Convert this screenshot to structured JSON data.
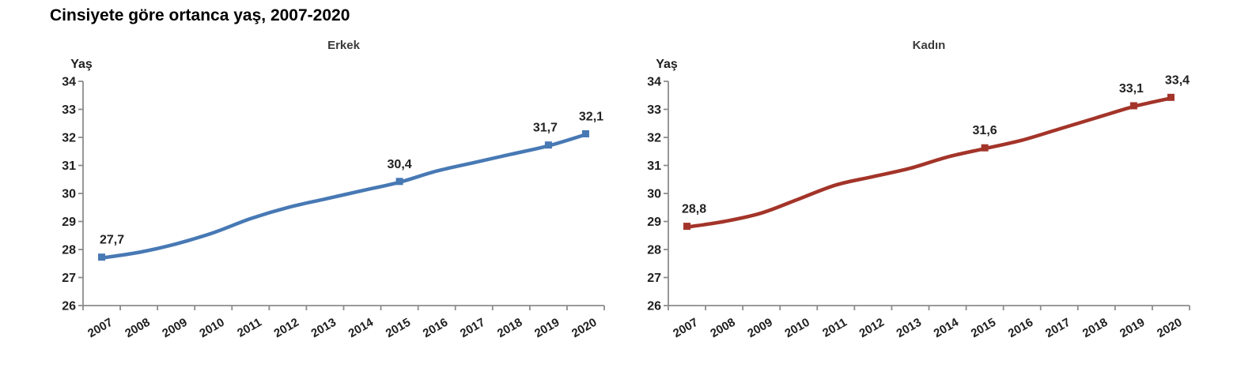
{
  "title": "Cinsiyete göre ortanca yaş, 2007-2020",
  "colors": {
    "male_series": "#4779B4",
    "female_series": "#A33429",
    "axis": "#8C8C8C",
    "tick_text": "#1F1F1F",
    "data_label_text": "#222222",
    "chart_title_text": "#3A3A3A"
  },
  "chart_data": [
    {
      "type": "line",
      "title": "Erkek",
      "ylabel": "Yaş",
      "x": [
        2007,
        2008,
        2009,
        2010,
        2011,
        2012,
        2013,
        2014,
        2015,
        2016,
        2017,
        2018,
        2019,
        2020
      ],
      "values": [
        27.7,
        27.9,
        28.2,
        28.6,
        29.1,
        29.5,
        29.8,
        30.1,
        30.4,
        30.8,
        31.1,
        31.4,
        31.7,
        32.1
      ],
      "ylim": [
        26,
        34
      ],
      "ytick_step": 1,
      "grid": false,
      "legend": "none",
      "color": "#4779B4",
      "point_labels": [
        {
          "x": 2007,
          "label": "27,7"
        },
        {
          "x": 2015,
          "label": "30,4"
        },
        {
          "x": 2019,
          "label": "31,7"
        },
        {
          "x": 2020,
          "label": "32,1"
        }
      ]
    },
    {
      "type": "line",
      "title": "Kadın",
      "ylabel": "Yaş",
      "x": [
        2007,
        2008,
        2009,
        2010,
        2011,
        2012,
        2013,
        2014,
        2015,
        2016,
        2017,
        2018,
        2019,
        2020
      ],
      "values": [
        28.8,
        29.0,
        29.3,
        29.8,
        30.3,
        30.6,
        30.9,
        31.3,
        31.6,
        31.9,
        32.3,
        32.7,
        33.1,
        33.4
      ],
      "ylim": [
        26,
        34
      ],
      "ytick_step": 1,
      "grid": false,
      "legend": "none",
      "color": "#A33429",
      "point_labels": [
        {
          "x": 2007,
          "label": "28,8"
        },
        {
          "x": 2015,
          "label": "31,6"
        },
        {
          "x": 2019,
          "label": "33,1"
        },
        {
          "x": 2020,
          "label": "33,4"
        }
      ]
    }
  ]
}
